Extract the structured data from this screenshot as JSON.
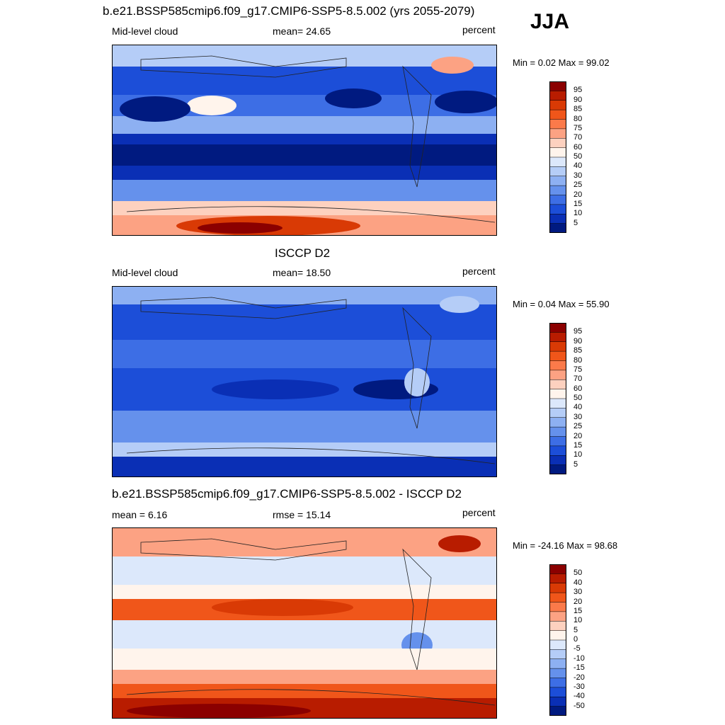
{
  "season": "JJA",
  "panels": [
    {
      "title": "b.e21.BSSP585cmip6.f09_g17.CMIP6-SSP5-8.5.002 (yrs 2055-2079)",
      "left_label": "Mid-level cloud",
      "center_label": "mean=  24.65",
      "right_label": "percent",
      "minmax": "Min =    0.02 Max =  99.02",
      "colorbar_levels": [
        "95",
        "90",
        "85",
        "80",
        "75",
        "70",
        "60",
        "50",
        "40",
        "30",
        "25",
        "20",
        "15",
        "10",
        "5"
      ],
      "colorbar_colors": [
        "#8b0000",
        "#b81c00",
        "#d93a05",
        "#f0561a",
        "#fb7a4a",
        "#fca283",
        "#fdd1bf",
        "#fff4ec",
        "#dce8fb",
        "#b5cdf7",
        "#8db0f2",
        "#6591ec",
        "#3d6ee5",
        "#1c4ed8",
        "#0a2fb5",
        "#001a80"
      ],
      "map_kind": "model"
    },
    {
      "title": "ISCCP D2",
      "left_label": "Mid-level cloud",
      "center_label": "mean=  18.50",
      "right_label": "percent",
      "minmax": "Min =    0.04 Max =  55.90",
      "colorbar_levels": [
        "95",
        "90",
        "85",
        "80",
        "75",
        "70",
        "60",
        "50",
        "40",
        "30",
        "25",
        "20",
        "15",
        "10",
        "5"
      ],
      "colorbar_colors": [
        "#8b0000",
        "#b81c00",
        "#d93a05",
        "#f0561a",
        "#fb7a4a",
        "#fca283",
        "#fdd1bf",
        "#fff4ec",
        "#dce8fb",
        "#b5cdf7",
        "#8db0f2",
        "#6591ec",
        "#3d6ee5",
        "#1c4ed8",
        "#0a2fb5",
        "#001a80"
      ],
      "map_kind": "obs"
    },
    {
      "title": "b.e21.BSSP585cmip6.f09_g17.CMIP6-SSP5-8.5.002 - ISCCP D2",
      "left_label": "mean =   6.16",
      "center_label": "rmse =  15.14",
      "right_label": "percent",
      "minmax": "Min = -24.16 Max =  98.68",
      "colorbar_levels": [
        "50",
        "40",
        "30",
        "20",
        "15",
        "10",
        "5",
        "0",
        "-5",
        "-10",
        "-15",
        "-20",
        "-30",
        "-40",
        "-50"
      ],
      "colorbar_colors": [
        "#8b0000",
        "#b81c00",
        "#d93a05",
        "#f0561a",
        "#fb7a4a",
        "#fca283",
        "#fdd1bf",
        "#fff4ec",
        "#dce8fb",
        "#b5cdf7",
        "#8db0f2",
        "#6591ec",
        "#3d6ee5",
        "#1c4ed8",
        "#0a2fb5",
        "#001a80"
      ],
      "map_kind": "diff"
    }
  ]
}
